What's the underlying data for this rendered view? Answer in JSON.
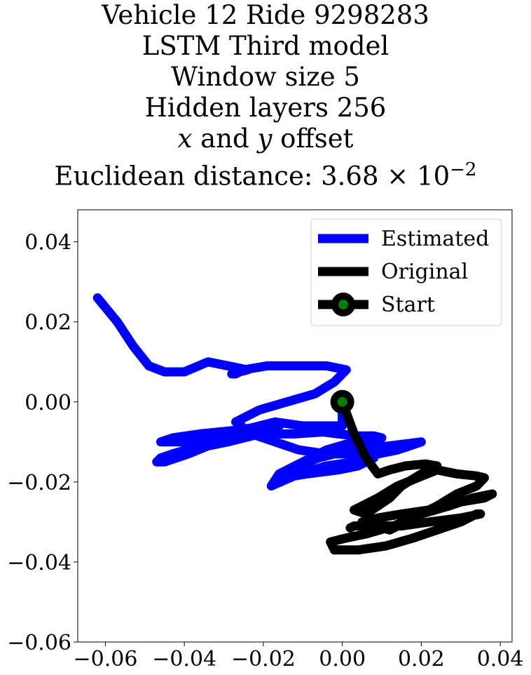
{
  "chart_data": {
    "type": "line",
    "title_lines": [
      "Vehicle 12 Ride 9298283",
      "LSTM Third model",
      "Window size 5",
      "Hidden layers 256",
      "x and y offset",
      "Euclidean distance: 3.68 × 10⁻²"
    ],
    "title_parts": {
      "line5_x": "x",
      "line5_mid": " and ",
      "line5_y": "y",
      "line5_end": " offset",
      "line6_text": "Euclidean distance: 3.68",
      "line6_times": " × 10",
      "line6_exp": "−2"
    },
    "xlim": [
      -0.067,
      0.043
    ],
    "ylim": [
      -0.06,
      0.048
    ],
    "x_ticks": [
      -0.06,
      -0.04,
      -0.02,
      0.0,
      0.02,
      0.04
    ],
    "x_tick_labels": [
      "−0.06",
      "−0.04",
      "−0.02",
      "0.00",
      "0.02",
      "0.04"
    ],
    "y_ticks": [
      0.04,
      0.02,
      0.0,
      -0.02,
      -0.04,
      -0.06
    ],
    "y_tick_labels": [
      "0.04",
      "0.02",
      "0.00",
      "−0.02",
      "−0.04",
      "−0.06"
    ],
    "grid": false,
    "legend_position": "top-right",
    "series": [
      {
        "name": "Estimated",
        "color": "#0000ff",
        "x": [
          0.0,
          0.0,
          -0.003,
          -0.01,
          -0.017,
          -0.025,
          -0.03,
          -0.038,
          -0.043,
          -0.046,
          -0.043,
          -0.036,
          -0.026,
          -0.02,
          -0.016,
          -0.025,
          -0.031,
          -0.036,
          -0.043,
          -0.046,
          -0.047,
          -0.045,
          -0.039,
          -0.034,
          -0.029,
          -0.021,
          -0.012,
          -0.005,
          -0.001,
          0.004,
          0.008,
          0.01,
          0.003,
          -0.004,
          -0.01,
          -0.016,
          -0.018,
          -0.011,
          -0.004,
          0.003,
          0.009,
          0.014,
          0.02,
          0.012,
          0.002,
          -0.006,
          -0.011,
          -0.015,
          -0.009,
          -0.001,
          0.004,
          0.008,
          0.003,
          -0.004,
          -0.011,
          -0.017,
          -0.023,
          -0.027,
          -0.021,
          -0.014,
          -0.007,
          -0.002,
          0.001,
          -0.004,
          -0.012,
          -0.019,
          -0.025,
          -0.027,
          -0.028,
          -0.024,
          -0.029,
          -0.034,
          -0.04,
          -0.045,
          -0.049,
          -0.053,
          -0.057,
          -0.062
        ],
        "y": [
          0.0,
          -0.006,
          -0.006,
          -0.006,
          -0.005,
          -0.007,
          -0.008,
          -0.01,
          -0.01,
          -0.01,
          -0.009,
          -0.008,
          -0.007,
          -0.006,
          -0.006,
          -0.007,
          -0.009,
          -0.011,
          -0.013,
          -0.014,
          -0.015,
          -0.015,
          -0.013,
          -0.011,
          -0.01,
          -0.008,
          -0.008,
          -0.0075,
          -0.008,
          -0.0085,
          -0.0085,
          -0.009,
          -0.01,
          -0.012,
          -0.015,
          -0.018,
          -0.021,
          -0.018,
          -0.016,
          -0.015,
          -0.013,
          -0.012,
          -0.01,
          -0.011,
          -0.012,
          -0.014,
          -0.016,
          -0.019,
          -0.018,
          -0.017,
          -0.016,
          -0.014,
          -0.013,
          -0.013,
          -0.012,
          -0.01,
          -0.008,
          -0.005,
          -0.002,
          0.0,
          0.002,
          0.005,
          0.008,
          0.009,
          0.009,
          0.009,
          0.008,
          0.007,
          0.007,
          0.008,
          0.009,
          0.01,
          0.0075,
          0.0075,
          0.009,
          0.014,
          0.02,
          0.026
        ]
      },
      {
        "name": "Original",
        "color": "#000000",
        "x": [
          0.0,
          0.003,
          0.006,
          0.009,
          0.012,
          0.016,
          0.021,
          0.024,
          0.02,
          0.015,
          0.012,
          0.006,
          0.003,
          0.009,
          0.014,
          0.019,
          0.024,
          0.029,
          0.034,
          0.036,
          0.034,
          0.029,
          0.024,
          0.018,
          0.012,
          0.005,
          0.009,
          0.015,
          0.022,
          0.03,
          0.036,
          0.038,
          0.033,
          0.027,
          0.02,
          0.013,
          0.006,
          0.001,
          -0.003,
          -0.002,
          0.004,
          0.011,
          0.018,
          0.024,
          0.03,
          0.034,
          0.035,
          0.03,
          0.022,
          0.015,
          0.008,
          0.003,
          0.002
        ],
        "y": [
          0.0,
          -0.008,
          -0.014,
          -0.018,
          -0.017,
          -0.016,
          -0.0155,
          -0.016,
          -0.018,
          -0.021,
          -0.024,
          -0.028,
          -0.027,
          -0.024,
          -0.021,
          -0.019,
          -0.017,
          -0.018,
          -0.0185,
          -0.019,
          -0.021,
          -0.023,
          -0.026,
          -0.029,
          -0.032,
          -0.03,
          -0.029,
          -0.028,
          -0.027,
          -0.025,
          -0.024,
          -0.023,
          -0.024,
          -0.026,
          -0.028,
          -0.031,
          -0.033,
          -0.034,
          -0.035,
          -0.037,
          -0.037,
          -0.036,
          -0.034,
          -0.032,
          -0.03,
          -0.028,
          -0.028,
          -0.029,
          -0.03,
          -0.031,
          -0.031,
          -0.031,
          -0.0315
        ]
      },
      {
        "name": "Start",
        "color": "#000000",
        "marker_face": "#008000",
        "x": [
          0.0
        ],
        "y": [
          0.0
        ]
      }
    ]
  }
}
